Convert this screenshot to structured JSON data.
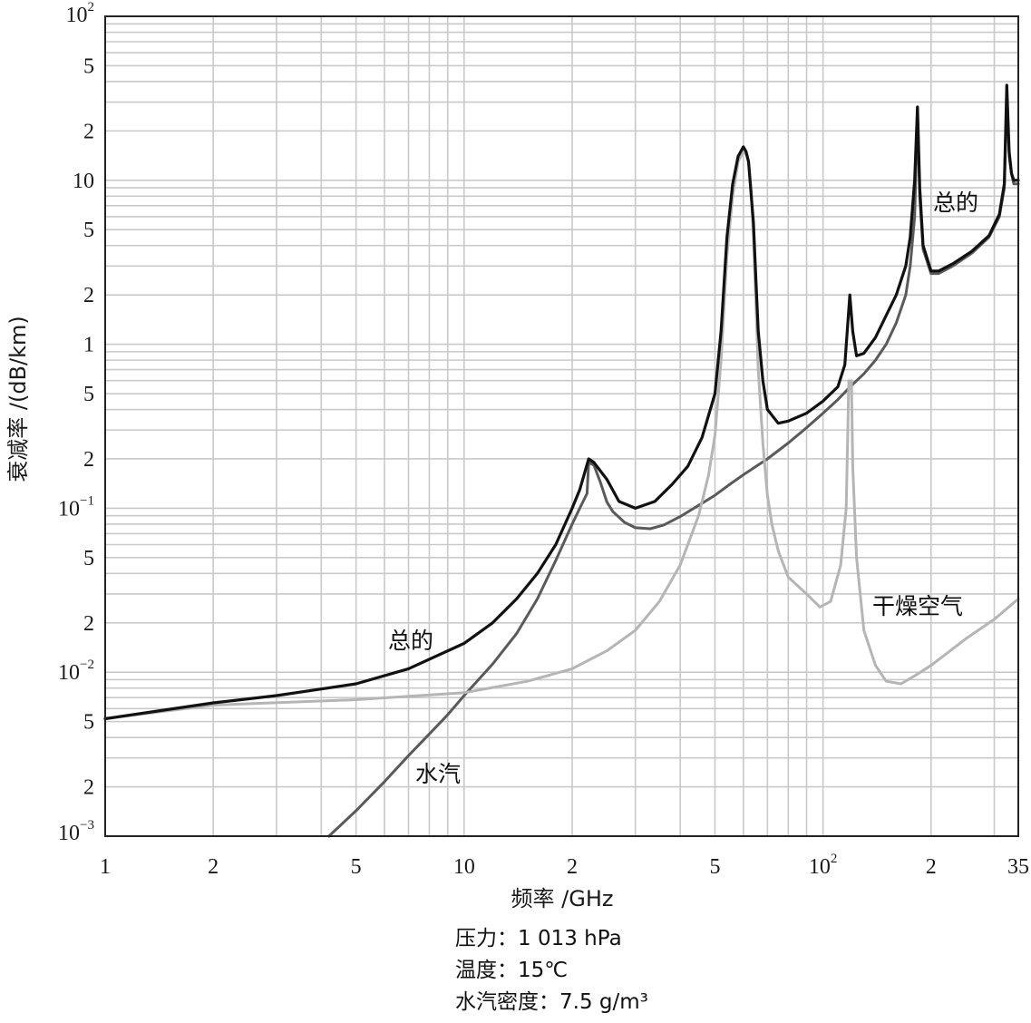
{
  "chart_data": {
    "type": "line",
    "xscale": "log",
    "yscale": "log",
    "xlim": [
      1,
      350
    ],
    "ylim": [
      0.001,
      100
    ],
    "grid": true,
    "xlabel": "频率 /GHz",
    "ylabel": "衰减率 /(dB/km)",
    "x_ticks": [
      {
        "value": 1,
        "label": "1",
        "sup": ""
      },
      {
        "value": 2,
        "label": "2",
        "sup": ""
      },
      {
        "value": 5,
        "label": "5",
        "sup": ""
      },
      {
        "value": 10,
        "label": "10",
        "sup": ""
      },
      {
        "value": 20,
        "label": "2",
        "sup": ""
      },
      {
        "value": 50,
        "label": "5",
        "sup": ""
      },
      {
        "value": 100,
        "label": "10",
        "sup": "2"
      },
      {
        "value": 200,
        "label": "2",
        "sup": ""
      },
      {
        "value": 350,
        "label": "35",
        "sup": ""
      }
    ],
    "y_ticks": [
      {
        "value": 0.001,
        "label": "10",
        "sup": "−3"
      },
      {
        "value": 0.002,
        "label": "2",
        "sup": ""
      },
      {
        "value": 0.005,
        "label": "5",
        "sup": ""
      },
      {
        "value": 0.01,
        "label": "10",
        "sup": "−2"
      },
      {
        "value": 0.02,
        "label": "2",
        "sup": ""
      },
      {
        "value": 0.05,
        "label": "5",
        "sup": ""
      },
      {
        "value": 0.1,
        "label": "10",
        "sup": "−1"
      },
      {
        "value": 0.2,
        "label": "2",
        "sup": ""
      },
      {
        "value": 0.5,
        "label": "5",
        "sup": ""
      },
      {
        "value": 1,
        "label": "1",
        "sup": ""
      },
      {
        "value": 2,
        "label": "2",
        "sup": ""
      },
      {
        "value": 5,
        "label": "5",
        "sup": ""
      },
      {
        "value": 10,
        "label": "10",
        "sup": ""
      },
      {
        "value": 20,
        "label": "2",
        "sup": ""
      },
      {
        "value": 50,
        "label": "5",
        "sup": ""
      },
      {
        "value": 100,
        "label": "10",
        "sup": "2"
      }
    ],
    "series": [
      {
        "name": "水汽",
        "color": "#5a5a5a",
        "points": [
          [
            4.2,
            0.001
          ],
          [
            5,
            0.00143
          ],
          [
            6,
            0.00215
          ],
          [
            7,
            0.0031
          ],
          [
            8,
            0.0042
          ],
          [
            9,
            0.0055
          ],
          [
            10,
            0.0072
          ],
          [
            12,
            0.0112
          ],
          [
            14,
            0.0172
          ],
          [
            16,
            0.028
          ],
          [
            18,
            0.048
          ],
          [
            20,
            0.08
          ],
          [
            21,
            0.1
          ],
          [
            22,
            0.123
          ],
          [
            22.235,
            0.19
          ],
          [
            23,
            0.183
          ],
          [
            24,
            0.143
          ],
          [
            25,
            0.109
          ],
          [
            26,
            0.095
          ],
          [
            28,
            0.082
          ],
          [
            30,
            0.076
          ],
          [
            33,
            0.075
          ],
          [
            36,
            0.079
          ],
          [
            40,
            0.089
          ],
          [
            45,
            0.104
          ],
          [
            50,
            0.12
          ],
          [
            55,
            0.14
          ],
          [
            60,
            0.16
          ],
          [
            70,
            0.2
          ],
          [
            80,
            0.25
          ],
          [
            90,
            0.31
          ],
          [
            100,
            0.38
          ],
          [
            110,
            0.46
          ],
          [
            120,
            0.56
          ],
          [
            130,
            0.66
          ],
          [
            140,
            0.8
          ],
          [
            150,
            1.0
          ],
          [
            160,
            1.35
          ],
          [
            170,
            2.0
          ],
          [
            175,
            3.0
          ],
          [
            180,
            6.0
          ],
          [
            183.3,
            27
          ],
          [
            186,
            8.0
          ],
          [
            190,
            3.8
          ],
          [
            200,
            2.7
          ],
          [
            210,
            2.7
          ],
          [
            230,
            3.0
          ],
          [
            260,
            3.6
          ],
          [
            290,
            4.5
          ],
          [
            310,
            6.0
          ],
          [
            320,
            9.0
          ],
          [
            325,
            35
          ],
          [
            330,
            14
          ],
          [
            335,
            11
          ],
          [
            340,
            9.5
          ],
          [
            350,
            9.5
          ]
        ]
      },
      {
        "name": "干燥空气",
        "color": "#b5b5b5",
        "points": [
          [
            1,
            0.0052
          ],
          [
            2,
            0.0063
          ],
          [
            5,
            0.0068
          ],
          [
            10,
            0.0075
          ],
          [
            15,
            0.0088
          ],
          [
            20,
            0.0105
          ],
          [
            25,
            0.0135
          ],
          [
            30,
            0.018
          ],
          [
            35,
            0.027
          ],
          [
            40,
            0.045
          ],
          [
            45,
            0.09
          ],
          [
            48,
            0.16
          ],
          [
            50,
            0.28
          ],
          [
            52,
            0.8
          ],
          [
            54,
            3.5
          ],
          [
            56,
            8.0
          ],
          [
            58,
            13
          ],
          [
            60,
            15
          ],
          [
            61,
            14.5
          ],
          [
            62,
            13
          ],
          [
            63,
            9.0
          ],
          [
            64,
            4.5
          ],
          [
            65,
            1.8
          ],
          [
            66,
            0.7
          ],
          [
            68,
            0.25
          ],
          [
            70,
            0.12
          ],
          [
            72,
            0.08
          ],
          [
            75,
            0.055
          ],
          [
            80,
            0.038
          ],
          [
            90,
            0.03
          ],
          [
            98,
            0.025
          ],
          [
            105,
            0.027
          ],
          [
            112,
            0.045
          ],
          [
            116,
            0.1
          ],
          [
            118,
            0.6
          ],
          [
            118.75,
            0.55
          ],
          [
            120,
            0.6
          ],
          [
            121,
            0.18
          ],
          [
            124,
            0.05
          ],
          [
            130,
            0.018
          ],
          [
            140,
            0.011
          ],
          [
            150,
            0.0088
          ],
          [
            165,
            0.0085
          ],
          [
            180,
            0.0095
          ],
          [
            200,
            0.011
          ],
          [
            250,
            0.016
          ],
          [
            300,
            0.021
          ],
          [
            350,
            0.028
          ]
        ]
      },
      {
        "name": "总的",
        "color": "#111111",
        "points": [
          [
            1,
            0.0052
          ],
          [
            2,
            0.0065
          ],
          [
            3,
            0.0072
          ],
          [
            5,
            0.0085
          ],
          [
            7,
            0.0105
          ],
          [
            10,
            0.015
          ],
          [
            12,
            0.02
          ],
          [
            14,
            0.028
          ],
          [
            16,
            0.04
          ],
          [
            18,
            0.06
          ],
          [
            20,
            0.1
          ],
          [
            21,
            0.13
          ],
          [
            22.235,
            0.2
          ],
          [
            23,
            0.19
          ],
          [
            25,
            0.15
          ],
          [
            27,
            0.11
          ],
          [
            30,
            0.1
          ],
          [
            34,
            0.11
          ],
          [
            38,
            0.14
          ],
          [
            42,
            0.18
          ],
          [
            46,
            0.27
          ],
          [
            50,
            0.5
          ],
          [
            52,
            1.2
          ],
          [
            54,
            4.5
          ],
          [
            56,
            9.5
          ],
          [
            58,
            14
          ],
          [
            60,
            16
          ],
          [
            61,
            15
          ],
          [
            62,
            13
          ],
          [
            64,
            5.5
          ],
          [
            65,
            2.5
          ],
          [
            66,
            1.2
          ],
          [
            68,
            0.6
          ],
          [
            70,
            0.4
          ],
          [
            75,
            0.33
          ],
          [
            80,
            0.34
          ],
          [
            90,
            0.38
          ],
          [
            100,
            0.45
          ],
          [
            110,
            0.55
          ],
          [
            115,
            0.75
          ],
          [
            118.75,
            2.0
          ],
          [
            121,
            1.2
          ],
          [
            124,
            0.85
          ],
          [
            130,
            0.88
          ],
          [
            140,
            1.1
          ],
          [
            150,
            1.5
          ],
          [
            160,
            2.0
          ],
          [
            170,
            3.0
          ],
          [
            175,
            4.5
          ],
          [
            180,
            10
          ],
          [
            183.3,
            28
          ],
          [
            186,
            9
          ],
          [
            190,
            4.0
          ],
          [
            200,
            2.8
          ],
          [
            210,
            2.8
          ],
          [
            230,
            3.1
          ],
          [
            260,
            3.7
          ],
          [
            290,
            4.6
          ],
          [
            310,
            6.2
          ],
          [
            320,
            9.5
          ],
          [
            325,
            38
          ],
          [
            330,
            15
          ],
          [
            335,
            11
          ],
          [
            340,
            10
          ],
          [
            350,
            10
          ]
        ]
      }
    ],
    "annotations": {
      "total_upper": "总的",
      "total_lower": "总的",
      "water_vapor": "水汽",
      "dry_air": "干燥空气"
    },
    "conditions": [
      "压力：1 013 hPa",
      "温度：15℃",
      "水汽密度：7.5 g/m³"
    ]
  }
}
